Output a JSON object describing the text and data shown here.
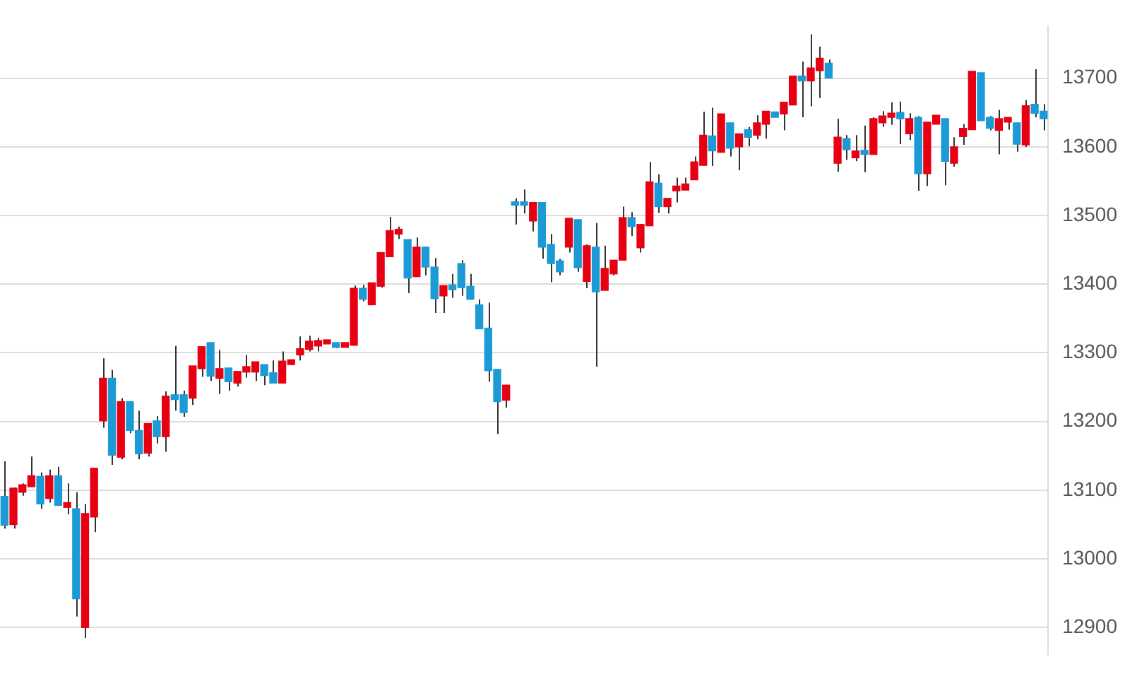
{
  "chart_data": {
    "type": "candlestick",
    "categories": [
      null,
      null,
      null,
      null,
      null,
      null,
      null,
      null,
      null,
      null,
      null,
      null,
      null,
      null,
      null,
      null,
      null,
      null,
      null,
      null,
      null,
      null,
      null,
      null,
      null,
      null,
      null,
      null,
      null,
      null,
      null,
      null,
      null,
      null,
      null,
      null,
      null,
      null,
      null,
      null,
      null,
      null,
      null,
      null,
      null,
      null,
      null,
      null,
      null,
      null,
      null,
      null,
      null,
      null,
      null,
      null,
      null,
      null,
      null,
      null,
      null,
      null,
      null,
      null,
      null,
      null,
      null,
      null,
      null,
      null,
      null,
      null,
      null,
      null,
      null,
      null,
      null,
      null,
      null,
      null,
      null,
      null,
      null,
      null,
      null,
      null,
      null,
      null,
      null,
      null,
      null,
      null,
      null,
      null,
      null,
      null,
      null,
      null,
      null,
      null,
      null,
      null,
      null,
      null,
      null,
      null,
      null,
      null,
      null,
      null,
      null,
      null,
      null,
      null,
      null,
      null,
      null
    ],
    "ohlc": [
      [
        13091,
        13142,
        13044,
        13049
      ],
      [
        13050,
        13104,
        13044,
        13103
      ],
      [
        13097,
        13110,
        13092,
        13108
      ],
      [
        13105,
        13149,
        13105,
        13121
      ],
      [
        13120,
        13126,
        13073,
        13080
      ],
      [
        13088,
        13130,
        13082,
        13121
      ],
      [
        13121,
        13134,
        13077,
        13078
      ],
      [
        13075,
        13110,
        13065,
        13082
      ],
      [
        13073,
        13097,
        12916,
        12942
      ],
      [
        12900,
        13080,
        12885,
        13066
      ],
      [
        13061,
        13132,
        13039,
        13132
      ],
      [
        13201,
        13292,
        13191,
        13263
      ],
      [
        13263,
        13275,
        13137,
        13151
      ],
      [
        13148,
        13234,
        13145,
        13229
      ],
      [
        13229,
        13229,
        13183,
        13187
      ],
      [
        13187,
        13216,
        13145,
        13153
      ],
      [
        13154,
        13197,
        13149,
        13197
      ],
      [
        13201,
        13208,
        13168,
        13178
      ],
      [
        13178,
        13244,
        13156,
        13237
      ],
      [
        13239,
        13310,
        13216,
        13232
      ],
      [
        13239,
        13245,
        13207,
        13213
      ],
      [
        13234,
        13281,
        13224,
        13281
      ],
      [
        13277,
        13309,
        13265,
        13309
      ],
      [
        13315,
        13315,
        13259,
        13266
      ],
      [
        13263,
        13304,
        13240,
        13277
      ],
      [
        13278,
        13278,
        13245,
        13258
      ],
      [
        13256,
        13273,
        13251,
        13273
      ],
      [
        13272,
        13297,
        13264,
        13280
      ],
      [
        13272,
        13287,
        13259,
        13287
      ],
      [
        13283,
        13283,
        13253,
        13267
      ],
      [
        13271,
        13289,
        13256,
        13256
      ],
      [
        13256,
        13302,
        13256,
        13288
      ],
      [
        13283,
        13290,
        13282,
        13290
      ],
      [
        13297,
        13324,
        13289,
        13306
      ],
      [
        13305,
        13325,
        13302,
        13317
      ],
      [
        13310,
        13322,
        13302,
        13318
      ],
      [
        13313,
        13319,
        13313,
        13319
      ],
      [
        13315,
        13315,
        13307,
        13308
      ],
      [
        13308,
        13315,
        13308,
        13315
      ],
      [
        13311,
        13398,
        13311,
        13394
      ],
      [
        13394,
        13399,
        13375,
        13378
      ],
      [
        13370,
        13402,
        13370,
        13402
      ],
      [
        13397,
        13446,
        13395,
        13446
      ],
      [
        13440,
        13498,
        13440,
        13478
      ],
      [
        13473,
        13484,
        13466,
        13480
      ],
      [
        13465,
        13465,
        13387,
        13409
      ],
      [
        13411,
        13468,
        13411,
        13454
      ],
      [
        13454,
        13454,
        13413,
        13425
      ],
      [
        13425,
        13438,
        13358,
        13379
      ],
      [
        13383,
        13398,
        13358,
        13398
      ],
      [
        13399,
        13415,
        13380,
        13392
      ],
      [
        13430,
        13435,
        13383,
        13395
      ],
      [
        13397,
        13415,
        13378,
        13378
      ],
      [
        13370,
        13378,
        13335,
        13335
      ],
      [
        13336,
        13373,
        13258,
        13274
      ],
      [
        13276,
        13276,
        13182,
        13229
      ],
      [
        13231,
        13253,
        13220,
        13253
      ],
      [
        13520,
        13525,
        13487,
        13515
      ],
      [
        13520,
        13538,
        13503,
        13515
      ],
      [
        13492,
        13519,
        13477,
        13519
      ],
      [
        13519,
        13519,
        13437,
        13454
      ],
      [
        13458,
        13473,
        13403,
        13430
      ],
      [
        13434,
        13437,
        13413,
        13418
      ],
      [
        13454,
        13496,
        13446,
        13496
      ],
      [
        13494,
        13494,
        13418,
        13424
      ],
      [
        13404,
        13458,
        13394,
        13456
      ],
      [
        13454,
        13489,
        13280,
        13389
      ],
      [
        13391,
        13456,
        13391,
        13423
      ],
      [
        13415,
        13435,
        13413,
        13435
      ],
      [
        13435,
        13513,
        13435,
        13497
      ],
      [
        13497,
        13505,
        13470,
        13484
      ],
      [
        13453,
        13487,
        13446,
        13487
      ],
      [
        13485,
        13578,
        13485,
        13549
      ],
      [
        13547,
        13560,
        13504,
        13513
      ],
      [
        13513,
        13525,
        13503,
        13525
      ],
      [
        13536,
        13555,
        13519,
        13543
      ],
      [
        13537,
        13555,
        13537,
        13546
      ],
      [
        13552,
        13586,
        13552,
        13578
      ],
      [
        13573,
        13651,
        13573,
        13617
      ],
      [
        13616,
        13657,
        13572,
        13594
      ],
      [
        13592,
        13648,
        13592,
        13648
      ],
      [
        13635,
        13635,
        13586,
        13598
      ],
      [
        13600,
        13619,
        13566,
        13619
      ],
      [
        13625,
        13629,
        13601,
        13614
      ],
      [
        13617,
        13646,
        13611,
        13635
      ],
      [
        13633,
        13652,
        13612,
        13652
      ],
      [
        13651,
        13651,
        13643,
        13643
      ],
      [
        13648,
        13665,
        13624,
        13665
      ],
      [
        13661,
        13703,
        13661,
        13703
      ],
      [
        13703,
        13724,
        13643,
        13696
      ],
      [
        13696,
        13764,
        13659,
        13715
      ],
      [
        13711,
        13746,
        13671,
        13729
      ],
      [
        13722,
        13727,
        13700,
        13700
      ],
      [
        13576,
        13641,
        13564,
        13614
      ],
      [
        13612,
        13617,
        13581,
        13596
      ],
      [
        13584,
        13617,
        13579,
        13594
      ],
      [
        13595,
        13631,
        13563,
        13589
      ],
      [
        13589,
        13643,
        13589,
        13641
      ],
      [
        13635,
        13652,
        13629,
        13645
      ],
      [
        13643,
        13665,
        13632,
        13649
      ],
      [
        13650,
        13666,
        13604,
        13641
      ],
      [
        13619,
        13649,
        13610,
        13641
      ],
      [
        13643,
        13645,
        13536,
        13561
      ],
      [
        13561,
        13636,
        13543,
        13636
      ],
      [
        13633,
        13646,
        13633,
        13646
      ],
      [
        13641,
        13641,
        13544,
        13579
      ],
      [
        13576,
        13614,
        13571,
        13600
      ],
      [
        13615,
        13633,
        13603,
        13627
      ],
      [
        13625,
        13710,
        13625,
        13710
      ],
      [
        13708,
        13708,
        13638,
        13638
      ],
      [
        13643,
        13645,
        13624,
        13627
      ],
      [
        13624,
        13654,
        13589,
        13641
      ],
      [
        13636,
        13643,
        13625,
        13643
      ],
      [
        13635,
        13635,
        13593,
        13604
      ],
      [
        13603,
        13668,
        13600,
        13660
      ],
      [
        13662,
        13713,
        13643,
        13649
      ],
      [
        13652,
        13662,
        13624,
        13641
      ]
    ],
    "colors": [
      "#1b9ad6",
      "#e60012",
      "#e60012",
      "#e60012",
      "#1b9ad6",
      "#e60012",
      "#1b9ad6",
      "#e60012",
      "#1b9ad6",
      "#e60012",
      "#e60012",
      "#e60012",
      "#1b9ad6",
      "#e60012",
      "#1b9ad6",
      "#1b9ad6",
      "#e60012",
      "#1b9ad6",
      "#e60012",
      "#1b9ad6",
      "#1b9ad6",
      "#e60012",
      "#e60012",
      "#1b9ad6",
      "#e60012",
      "#1b9ad6",
      "#e60012",
      "#e60012",
      "#e60012",
      "#1b9ad6",
      "#1b9ad6",
      "#e60012",
      "#e60012",
      "#e60012",
      "#e60012",
      "#e60012",
      "#e60012",
      "#1b9ad6",
      "#e60012",
      "#e60012",
      "#1b9ad6",
      "#e60012",
      "#e60012",
      "#e60012",
      "#e60012",
      "#1b9ad6",
      "#e60012",
      "#1b9ad6",
      "#1b9ad6",
      "#e60012",
      "#1b9ad6",
      "#1b9ad6",
      "#1b9ad6",
      "#1b9ad6",
      "#1b9ad6",
      "#1b9ad6",
      "#e60012",
      "#1b9ad6",
      "#1b9ad6",
      "#e60012",
      "#1b9ad6",
      "#1b9ad6",
      "#1b9ad6",
      "#e60012",
      "#1b9ad6",
      "#e60012",
      "#1b9ad6",
      "#e60012",
      "#e60012",
      "#e60012",
      "#1b9ad6",
      "#e60012",
      "#e60012",
      "#1b9ad6",
      "#e60012",
      "#e60012",
      "#e60012",
      "#e60012",
      "#e60012",
      "#1b9ad6",
      "#e60012",
      "#1b9ad6",
      "#e60012",
      "#1b9ad6",
      "#e60012",
      "#e60012",
      "#1b9ad6",
      "#e60012",
      "#e60012",
      "#1b9ad6",
      "#e60012",
      "#e60012",
      "#1b9ad6",
      "#e60012",
      "#1b9ad6",
      "#e60012",
      "#1b9ad6",
      "#e60012",
      "#e60012",
      "#e60012",
      "#1b9ad6",
      "#e60012",
      "#1b9ad6",
      "#e60012",
      "#e60012",
      "#1b9ad6",
      "#e60012",
      "#e60012",
      "#e60012",
      "#1b9ad6",
      "#1b9ad6",
      "#e60012",
      "#e60012",
      "#1b9ad6",
      "#e60012",
      "#1b9ad6",
      "#1b9ad6"
    ],
    "ylim": [
      12860,
      13776
    ],
    "yticks": [
      12900,
      13000,
      13100,
      13200,
      13300,
      13400,
      13500,
      13600,
      13700
    ],
    "grid": "y",
    "tick_labels": "y",
    "legend": false
  }
}
